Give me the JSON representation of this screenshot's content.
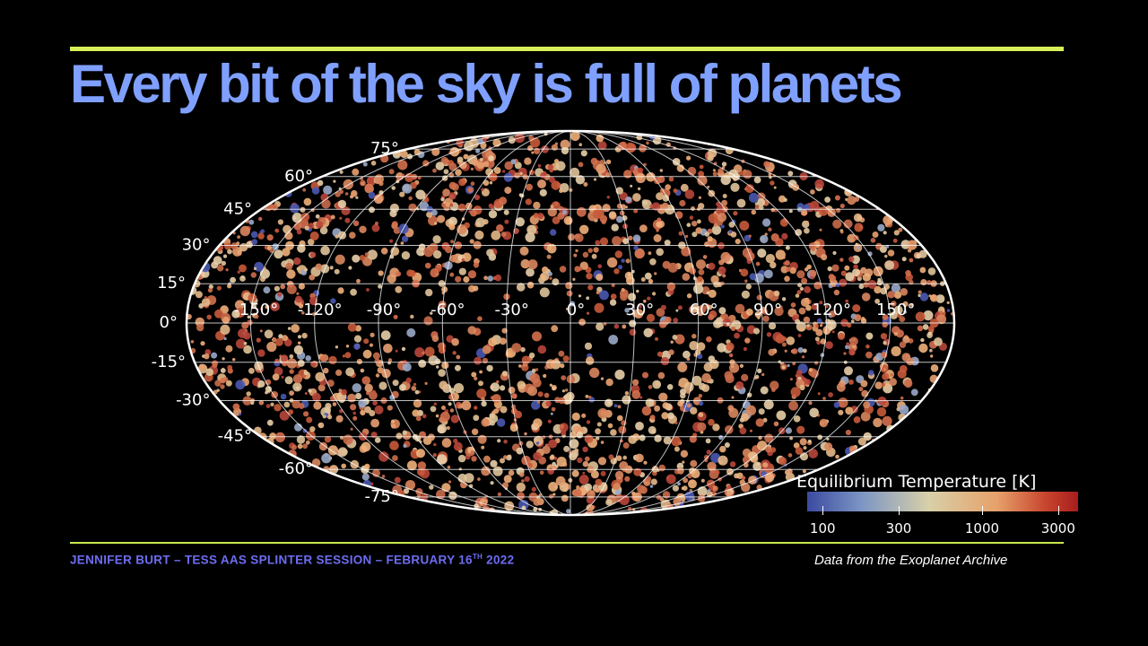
{
  "slide": {
    "title": "Every bit of the sky is full of planets",
    "footer_left_main": "JENNIFER BURT – TESS AAS SPLINTER SESSION – FEBRUARY 16",
    "footer_left_sup": "TH",
    "footer_left_year": " 2022",
    "footer_right": "Data from the Exoplanet Archive",
    "accent_color": "#d8ef5a",
    "title_color": "#7fa0ff"
  },
  "chart_data": {
    "type": "scatter",
    "projection": "mollweide",
    "title": "",
    "longitude_labels": [
      "-150°",
      "-120°",
      "-90°",
      "-60°",
      "-30°",
      "0°",
      "30°",
      "60°",
      "90°",
      "120°",
      "150°"
    ],
    "latitude_labels": [
      "75°",
      "60°",
      "45°",
      "30°",
      "15°",
      "0°",
      "-15°",
      "-30°",
      "-45°",
      "-60°",
      "-75°"
    ],
    "grid": true,
    "colorbar": {
      "label": "Equilibrium Temperature [K]",
      "scale": "log",
      "ticks": [
        "100",
        "300",
        "1000",
        "3000"
      ],
      "range": [
        80,
        4000
      ],
      "colormap": [
        "#3b4aa0",
        "#7c95c4",
        "#d8d0a8",
        "#e6a16a",
        "#c8452e",
        "#a81d1d"
      ]
    },
    "legend_position": "bottom-right"
  }
}
